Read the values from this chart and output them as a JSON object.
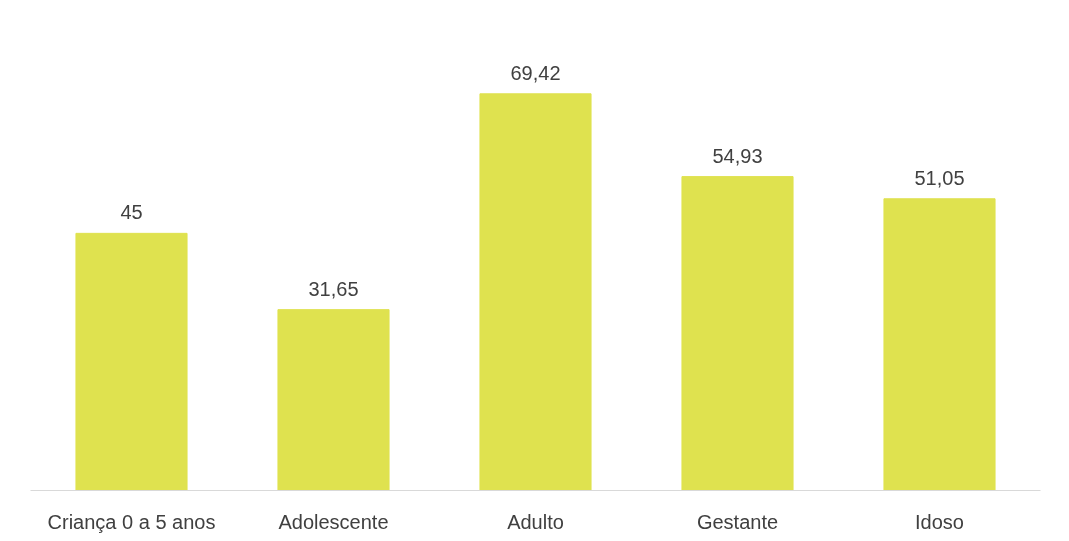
{
  "chart_data": {
    "type": "bar",
    "categories": [
      "Criança 0 a 5 anos",
      "Adolescente",
      "Adulto",
      "Gestante",
      "Idoso"
    ],
    "values": [
      45,
      31.65,
      69.42,
      54.93,
      51.05
    ],
    "value_labels": [
      "45",
      "31,65",
      "69,42",
      "54,93",
      "51,05"
    ],
    "color": "#dfe24f",
    "grid": false
  }
}
